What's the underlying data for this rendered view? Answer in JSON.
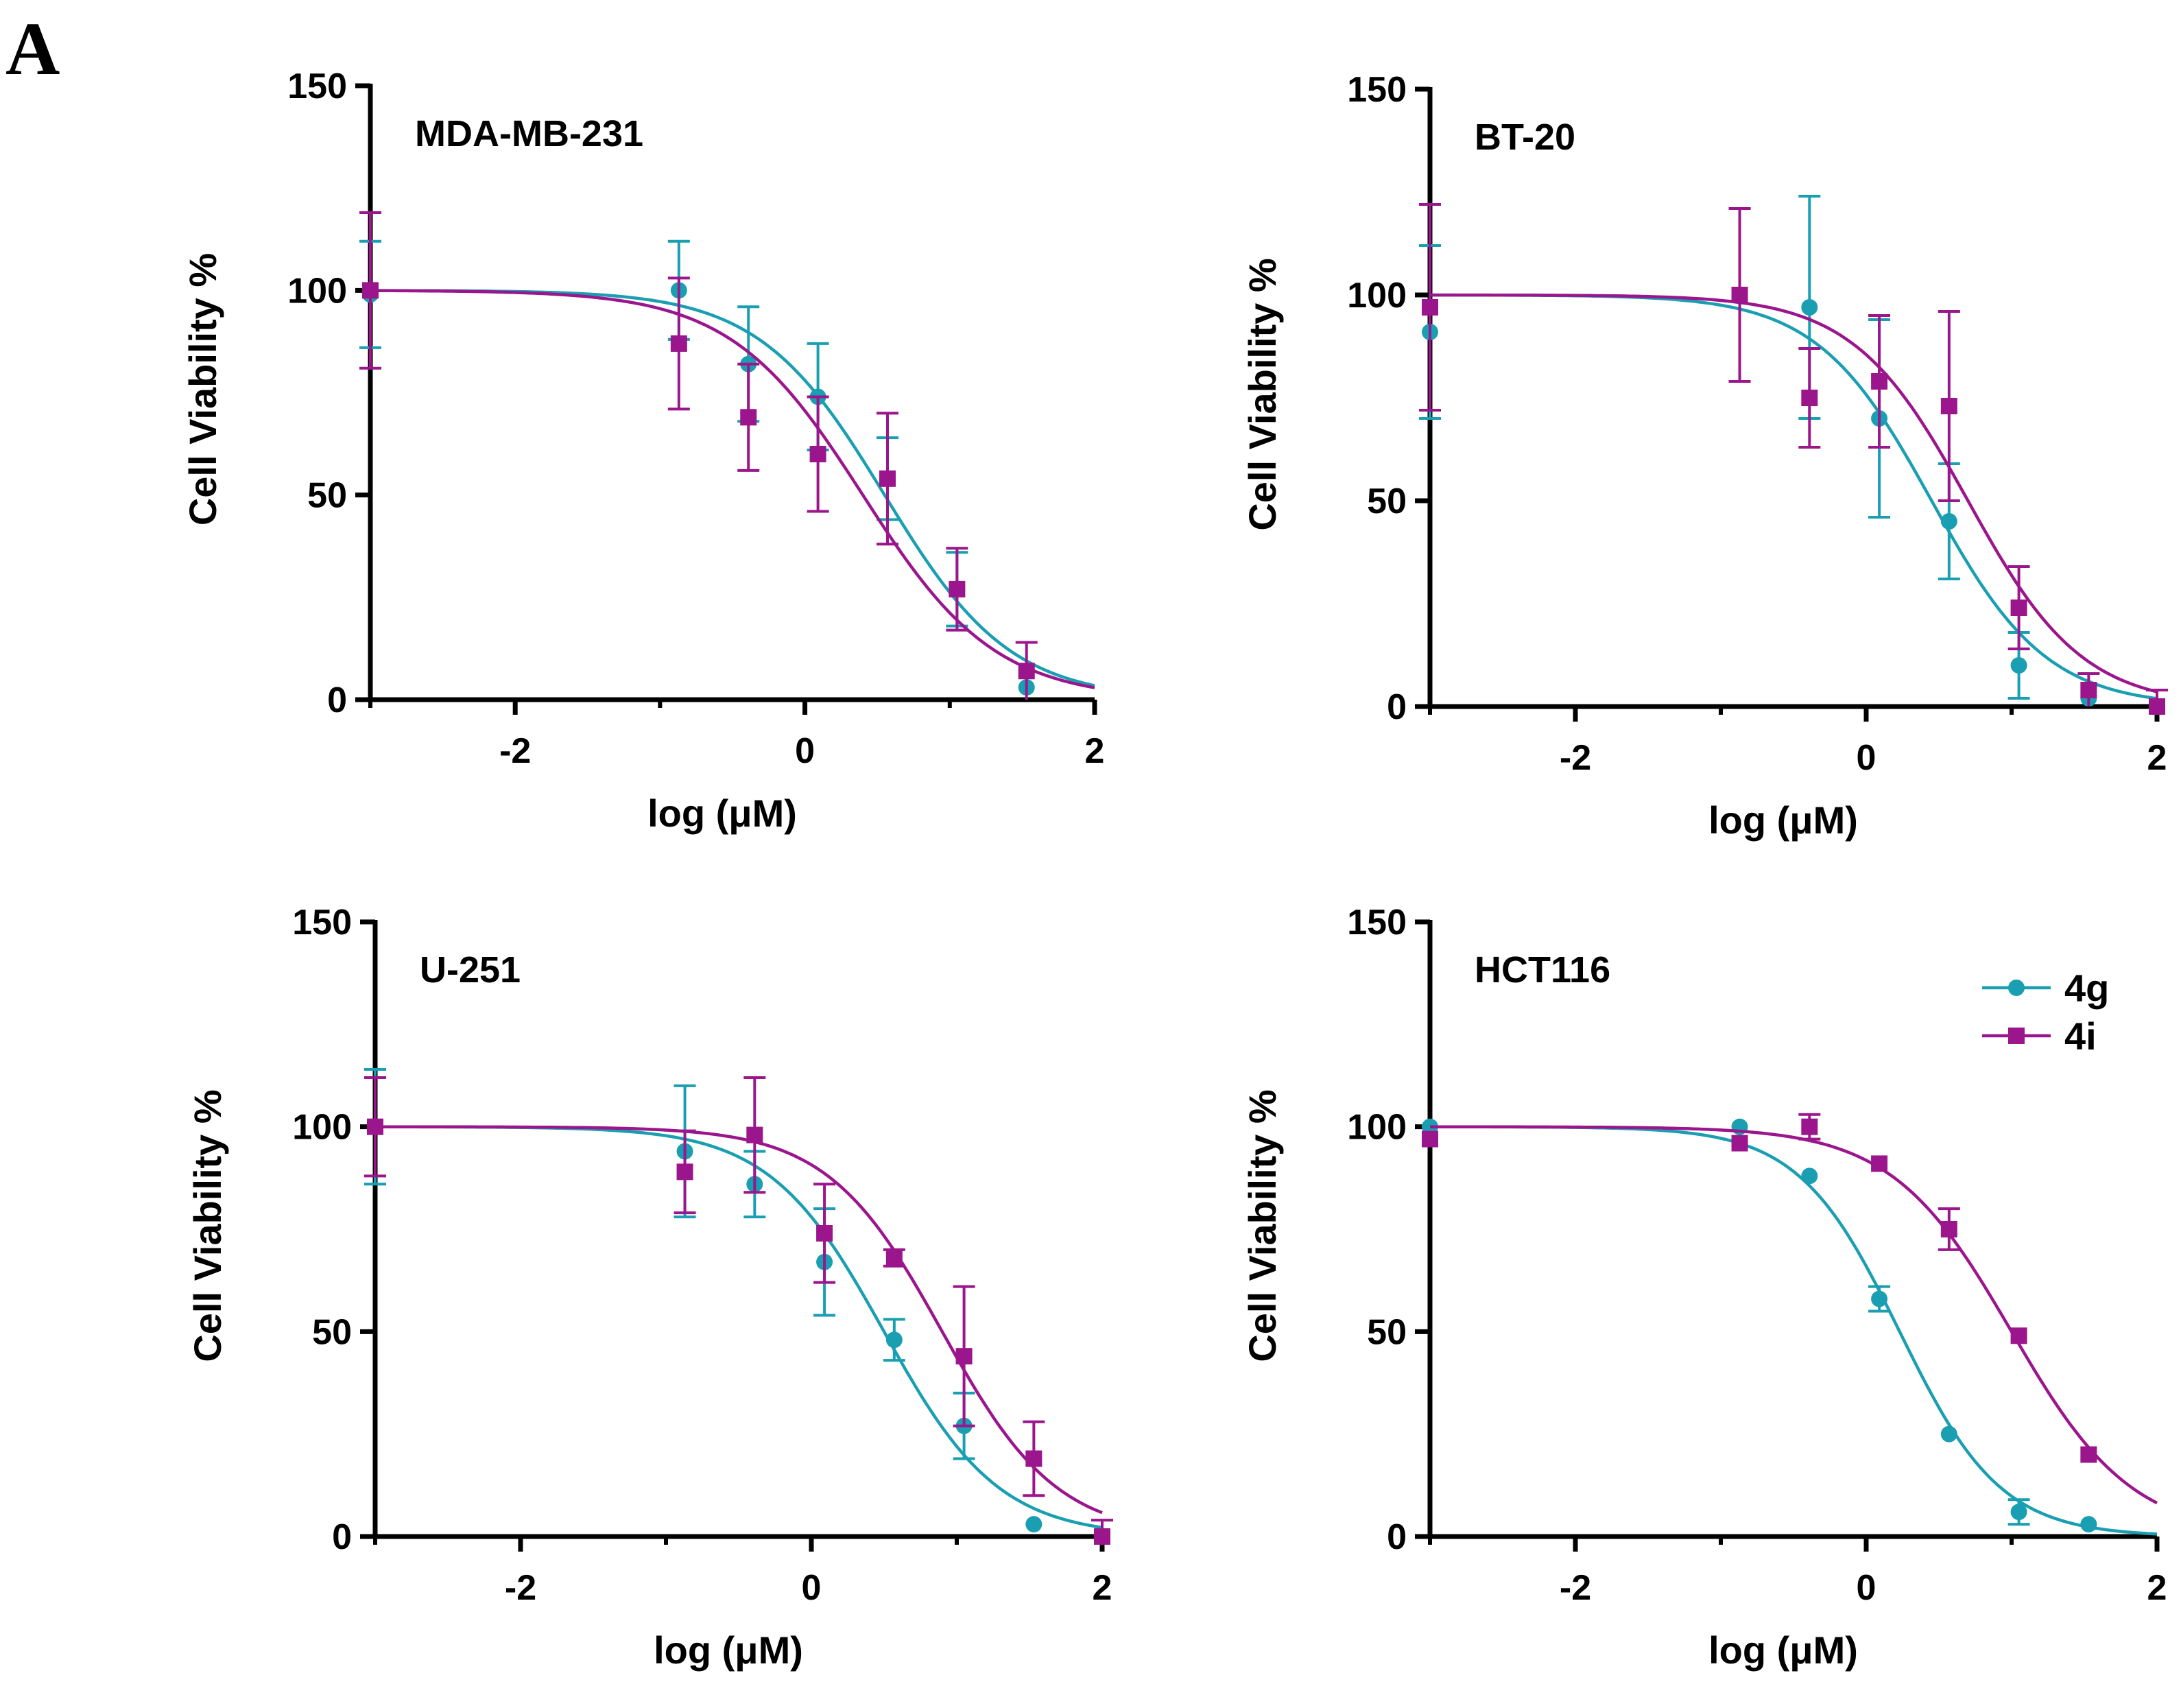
{
  "figure": {
    "panel_label": "A"
  },
  "legend": {
    "entries": [
      {
        "name": "4g",
        "color": "#1a9fb2",
        "marker": "circle"
      },
      {
        "name": "4i",
        "color": "#9b168c",
        "marker": "square"
      }
    ]
  },
  "chart_data": [
    {
      "type": "scatter",
      "title": "MDA-MB-231",
      "xlabel": "log (μM)",
      "ylabel": "Cell Viability %",
      "xlim": [
        -3,
        2
      ],
      "ylim": [
        0,
        150
      ],
      "xticks": [
        -2,
        0,
        2
      ],
      "yticks": [
        0,
        50,
        100,
        150
      ],
      "series": [
        {
          "name": "4g",
          "color": "#1a9fb2",
          "marker": "circle",
          "x": [
            -3.0,
            -0.87,
            -0.39,
            0.09,
            0.57,
            1.05,
            1.53
          ],
          "y": [
            99,
            100,
            82,
            74,
            54,
            27,
            3
          ],
          "err": [
            13,
            12,
            14,
            13,
            10,
            9,
            0
          ],
          "fit": {
            "top": 100,
            "bottom": 0,
            "log_ic50": 0.55,
            "hill": 1.0
          }
        },
        {
          "name": "4i",
          "color": "#9b168c",
          "marker": "square",
          "x": [
            -3.0,
            -0.87,
            -0.39,
            0.09,
            0.57,
            1.05,
            1.53
          ],
          "y": [
            100,
            87,
            69,
            60,
            54,
            27,
            7
          ],
          "err": [
            19,
            16,
            13,
            14,
            16,
            10,
            7
          ],
          "fit": {
            "top": 100,
            "bottom": 0,
            "log_ic50": 0.4,
            "hill": 0.95
          }
        }
      ]
    },
    {
      "type": "scatter",
      "title": "BT-20",
      "xlabel": "log (μM)",
      "ylabel": "Cell Viability %",
      "xlim": [
        -3,
        2
      ],
      "ylim": [
        0,
        150
      ],
      "xticks": [
        -2,
        0,
        2
      ],
      "yticks": [
        0,
        50,
        100,
        150
      ],
      "series": [
        {
          "name": "4g",
          "color": "#1a9fb2",
          "marker": "circle",
          "x": [
            -3.0,
            -0.87,
            -0.39,
            0.09,
            0.57,
            1.05,
            1.53
          ],
          "y": [
            91,
            100,
            97,
            70,
            45,
            10,
            2
          ],
          "err": [
            21,
            21,
            27,
            24,
            14,
            8,
            0
          ],
          "fit": {
            "top": 100,
            "bottom": 0,
            "log_ic50": 0.45,
            "hill": 1.1
          }
        },
        {
          "name": "4i",
          "color": "#9b168c",
          "marker": "square",
          "x": [
            -3.0,
            -0.87,
            -0.39,
            0.09,
            0.57,
            1.05,
            1.53,
            2.0
          ],
          "y": [
            97,
            100,
            75,
            79,
            73,
            24,
            4,
            0
          ],
          "err": [
            25,
            21,
            12,
            16,
            23,
            10,
            4,
            4
          ],
          "fit": {
            "top": 100,
            "bottom": 0,
            "log_ic50": 0.7,
            "hill": 1.1
          }
        }
      ]
    },
    {
      "type": "scatter",
      "title": "U-251",
      "xlabel": "log (μM)",
      "ylabel": "Cell Viability %",
      "xlim": [
        -3,
        2
      ],
      "ylim": [
        0,
        150
      ],
      "xticks": [
        -2,
        0,
        2
      ],
      "yticks": [
        0,
        50,
        100,
        150
      ],
      "series": [
        {
          "name": "4g",
          "color": "#1a9fb2",
          "marker": "circle",
          "x": [
            -3.0,
            -0.87,
            -0.39,
            0.09,
            0.57,
            1.05,
            1.53
          ],
          "y": [
            100,
            94,
            86,
            67,
            48,
            27,
            3
          ],
          "err": [
            14,
            16,
            8,
            13,
            5,
            8,
            0
          ],
          "fit": {
            "top": 100,
            "bottom": 0,
            "log_ic50": 0.5,
            "hill": 1.1
          }
        },
        {
          "name": "4i",
          "color": "#9b168c",
          "marker": "square",
          "x": [
            -3.0,
            -0.87,
            -0.39,
            0.09,
            0.57,
            1.05,
            1.53,
            2.0
          ],
          "y": [
            100,
            89,
            98,
            74,
            68,
            44,
            19,
            0
          ],
          "err": [
            12,
            10,
            14,
            12,
            2,
            17,
            9,
            4
          ],
          "fit": {
            "top": 100,
            "bottom": 0,
            "log_ic50": 0.9,
            "hill": 1.1
          }
        }
      ]
    },
    {
      "type": "scatter",
      "title": "HCT116",
      "xlabel": "log (μM)",
      "ylabel": "Cell Viability %",
      "xlim": [
        -3,
        2
      ],
      "ylim": [
        0,
        150
      ],
      "xticks": [
        -2,
        0,
        2
      ],
      "yticks": [
        0,
        50,
        100,
        150
      ],
      "series": [
        {
          "name": "4g",
          "color": "#1a9fb2",
          "marker": "circle",
          "x": [
            -3.0,
            -0.87,
            -0.39,
            0.09,
            0.57,
            1.05,
            1.53
          ],
          "y": [
            100,
            100,
            88,
            58,
            25,
            6,
            3
          ],
          "err": [
            0,
            0,
            0,
            3,
            0,
            3,
            0
          ],
          "fit": {
            "top": 100,
            "bottom": 0,
            "log_ic50": 0.23,
            "hill": 1.25
          }
        },
        {
          "name": "4i",
          "color": "#9b168c",
          "marker": "square",
          "x": [
            -3.0,
            -0.87,
            -0.39,
            0.09,
            0.57,
            1.05,
            1.53
          ],
          "y": [
            97,
            96,
            100,
            91,
            75,
            49,
            20
          ],
          "err": [
            0,
            0,
            3,
            0,
            5,
            0,
            0
          ],
          "fit": {
            "top": 100,
            "bottom": 0,
            "log_ic50": 1.0,
            "hill": 1.05
          }
        }
      ]
    }
  ]
}
